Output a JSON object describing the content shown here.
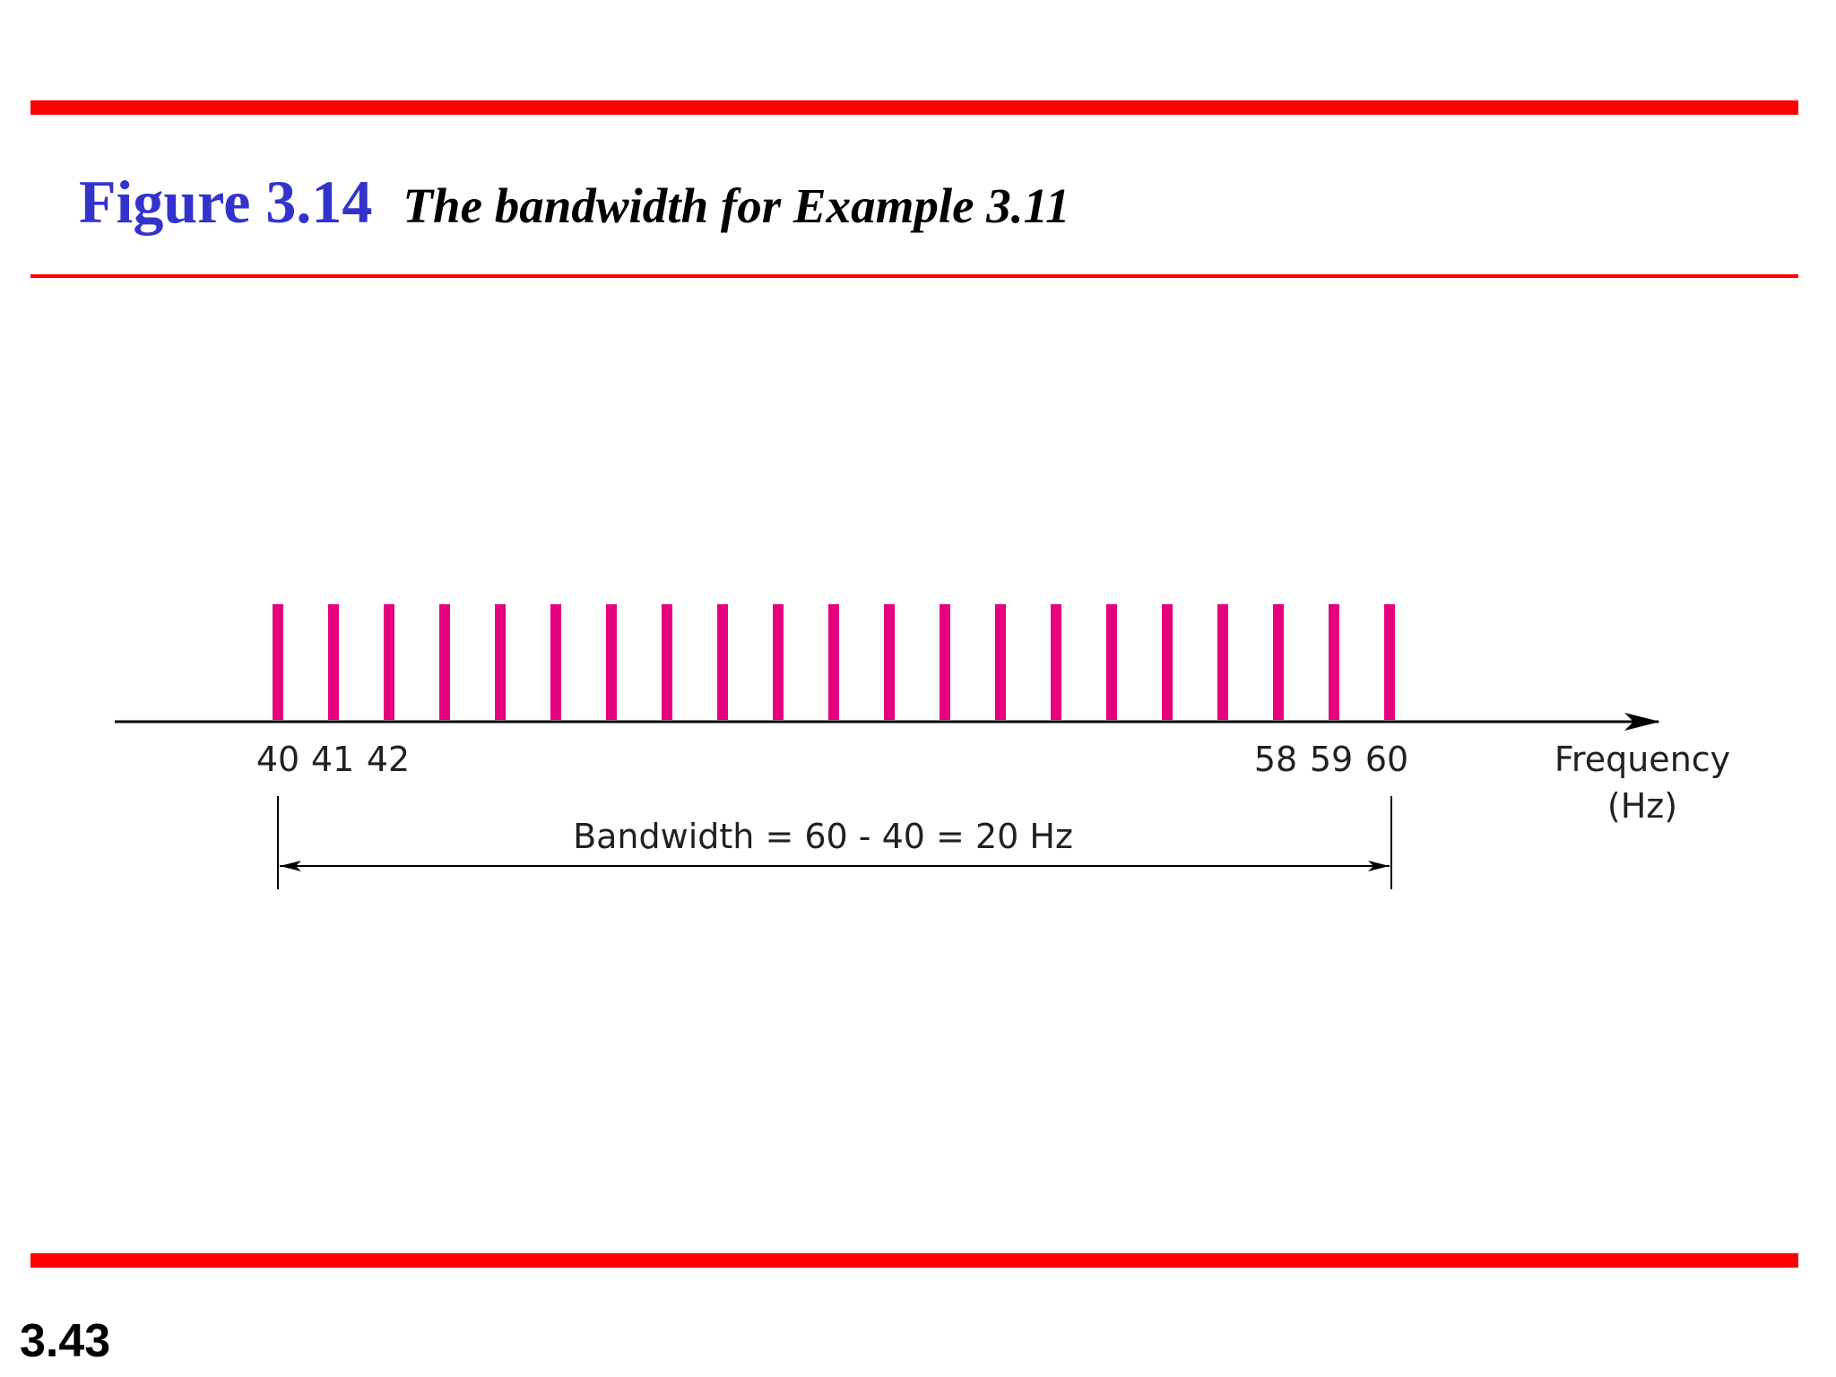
{
  "header": {
    "figure_number": "Figure 3.14",
    "caption": "The bandwidth for Example 3.11"
  },
  "footer": {
    "page_number": "3.43"
  },
  "diagram": {
    "spectrum_lines": {
      "start_hz": 40,
      "end_hz": 60,
      "step_hz": 1,
      "color": "#e5007e"
    },
    "tick_labels": [
      "40",
      "41",
      "42",
      "58",
      "59",
      "60"
    ],
    "axis_label_line1": "Frequency",
    "axis_label_line2": "(Hz)",
    "bandwidth_label": "Bandwidth = 60 - 40 = 20 Hz"
  },
  "colors": {
    "rule": "#ff0000",
    "figure_number": "#3333cc",
    "spectrum": "#e5007e"
  }
}
